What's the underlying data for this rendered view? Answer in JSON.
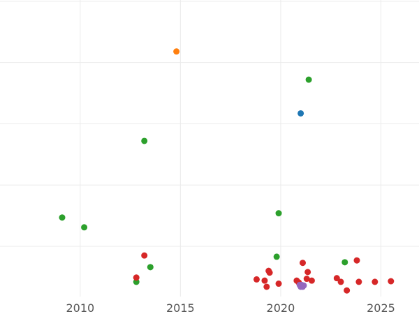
{
  "chart_data": {
    "type": "scatter",
    "title": "",
    "xlabel": "",
    "ylabel": "",
    "xlim": [
      2006.0,
      2026.9
    ],
    "ylim": [
      -0.02,
      4.82
    ],
    "grid": true,
    "x_ticks": [
      2010,
      2015,
      2020,
      2025
    ],
    "x_tick_labels": [
      "2010",
      "2015",
      "2020",
      "2025"
    ],
    "y_ticks": [
      0.8,
      1.8,
      2.8,
      3.8,
      4.8
    ],
    "series": [
      {
        "name": "blue",
        "color": "#1f77b4",
        "points": [
          [
            2021.0,
            2.97
          ]
        ]
      },
      {
        "name": "orange",
        "color": "#ff7f0e",
        "points": [
          [
            2014.8,
            3.98
          ]
        ]
      },
      {
        "name": "green",
        "color": "#2ca02c",
        "points": [
          [
            2009.1,
            1.27
          ],
          [
            2010.2,
            1.11
          ],
          [
            2012.8,
            0.22
          ],
          [
            2013.2,
            2.52
          ],
          [
            2013.5,
            0.46
          ],
          [
            2019.8,
            0.63
          ],
          [
            2019.9,
            1.34
          ],
          [
            2021.4,
            3.52
          ],
          [
            2023.2,
            0.54
          ]
        ]
      },
      {
        "name": "red",
        "color": "#d62728",
        "points": [
          [
            2012.8,
            0.29
          ],
          [
            2013.2,
            0.65
          ],
          [
            2018.8,
            0.26
          ],
          [
            2019.2,
            0.24
          ],
          [
            2019.3,
            0.14
          ],
          [
            2019.4,
            0.4
          ],
          [
            2019.45,
            0.37
          ],
          [
            2019.9,
            0.19
          ],
          [
            2020.8,
            0.24
          ],
          [
            2020.9,
            0.21
          ],
          [
            2021.1,
            0.53
          ],
          [
            2021.3,
            0.27
          ],
          [
            2021.35,
            0.38
          ],
          [
            2021.55,
            0.24
          ],
          [
            2022.8,
            0.28
          ],
          [
            2023.0,
            0.22
          ],
          [
            2023.3,
            0.08
          ],
          [
            2023.8,
            0.57
          ],
          [
            2023.9,
            0.22
          ],
          [
            2024.7,
            0.22
          ],
          [
            2025.5,
            0.23
          ]
        ]
      },
      {
        "name": "purple",
        "color": "#9467bd",
        "points": [
          [
            2020.95,
            0.17
          ],
          [
            2021.0,
            0.14
          ],
          [
            2021.05,
            0.17
          ],
          [
            2021.1,
            0.14
          ],
          [
            2021.15,
            0.16
          ]
        ]
      }
    ]
  }
}
